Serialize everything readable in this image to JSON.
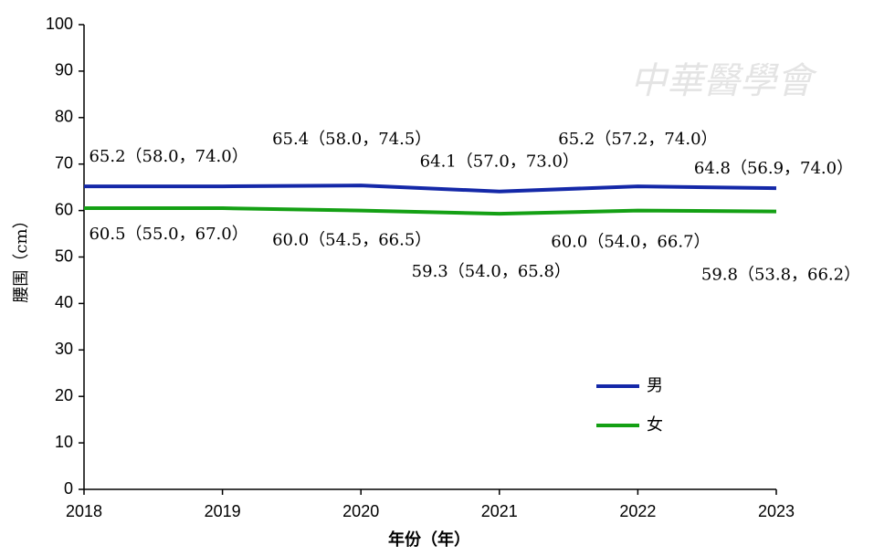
{
  "chart_data": {
    "type": "line",
    "watermark": "中華醫學會",
    "x_label": "年份（年）",
    "y_label": "腰围（cm）",
    "x": [
      2018,
      2019,
      2020,
      2021,
      2022,
      2023
    ],
    "xlim": [
      2018,
      2023
    ],
    "xticks": [
      2018,
      2019,
      2020,
      2021,
      2022,
      2023
    ],
    "ylim": [
      0,
      100
    ],
    "yticks": [
      0,
      10,
      20,
      30,
      40,
      50,
      60,
      70,
      80,
      90,
      100
    ],
    "series": [
      {
        "name": "男",
        "color": "#1428a8",
        "values": [
          65.2,
          65.2,
          65.4,
          64.1,
          65.2,
          64.8
        ],
        "value_labels": [
          null,
          "65.2（58.0，74.0）",
          "65.4（58.0，74.5）",
          "64.1（57.0，73.0）",
          "65.2（57.2，74.0）",
          "64.8（56.9，74.0）"
        ]
      },
      {
        "name": "女",
        "color": "#14a014",
        "values": [
          60.5,
          60.5,
          60.0,
          59.3,
          60.0,
          59.8
        ],
        "value_labels": [
          null,
          "60.5（55.0，67.0）",
          "60.0（54.5，66.5）",
          "59.3（54.0，65.8）",
          "60.0（54.0，66.7）",
          "59.8（53.8，66.2）"
        ]
      }
    ]
  }
}
